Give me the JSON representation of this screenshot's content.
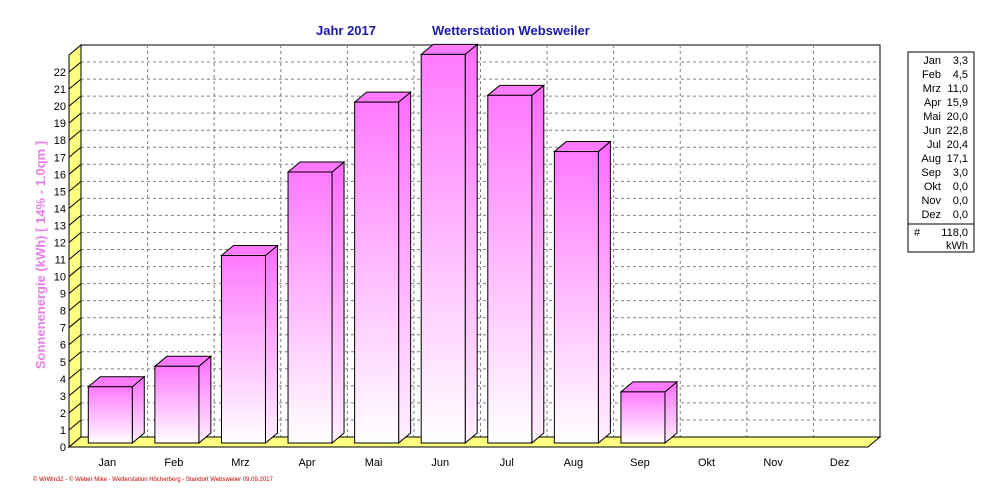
{
  "header": {
    "year_label": "Jahr  2017",
    "station_label": "Wetterstation Websweiler"
  },
  "chart_data": {
    "type": "bar",
    "categories": [
      "Jan",
      "Feb",
      "Mrz",
      "Apr",
      "Mai",
      "Jun",
      "Jul",
      "Aug",
      "Sep",
      "Okt",
      "Nov",
      "Dez"
    ],
    "values": [
      3.3,
      4.5,
      11.0,
      15.9,
      20.0,
      22.8,
      20.4,
      17.1,
      3.0,
      0.0,
      0.0,
      0.0
    ],
    "ylabel": "Sonnenenergie   (kWh)    [ 14% - 1.0qm ]",
    "ylim": [
      0,
      23
    ],
    "yticks": [
      0,
      1,
      2,
      3,
      4,
      5,
      6,
      7,
      8,
      9,
      10,
      11,
      12,
      13,
      14,
      15,
      16,
      17,
      18,
      19,
      20,
      21,
      22
    ],
    "grid": true,
    "legend_position": "right",
    "bar_color_top": "#ff7aff",
    "bar_color_bottom": "#ffffff",
    "floor_color": "#ffff80"
  },
  "legend": {
    "rows": [
      {
        "month": "Jan",
        "value": "3,3"
      },
      {
        "month": "Feb",
        "value": "4,5"
      },
      {
        "month": "Mrz",
        "value": "11,0"
      },
      {
        "month": "Apr",
        "value": "15,9"
      },
      {
        "month": "Mai",
        "value": "20,0"
      },
      {
        "month": "Jun",
        "value": "22,8"
      },
      {
        "month": "Jul",
        "value": "20,4"
      },
      {
        "month": "Aug",
        "value": "17,1"
      },
      {
        "month": "Sep",
        "value": "3,0"
      },
      {
        "month": "Okt",
        "value": "0,0"
      },
      {
        "month": "Nov",
        "value": "0,0"
      },
      {
        "month": "Dez",
        "value": "0,0"
      }
    ],
    "total_symbol": "#",
    "total_value": "118,0",
    "total_unit": "kWh"
  },
  "footer": {
    "text": "© WrWin32  -  © Weber Mike  -  Wetterstation Höcherberg - Standort Websweiler   09.09.2017"
  }
}
